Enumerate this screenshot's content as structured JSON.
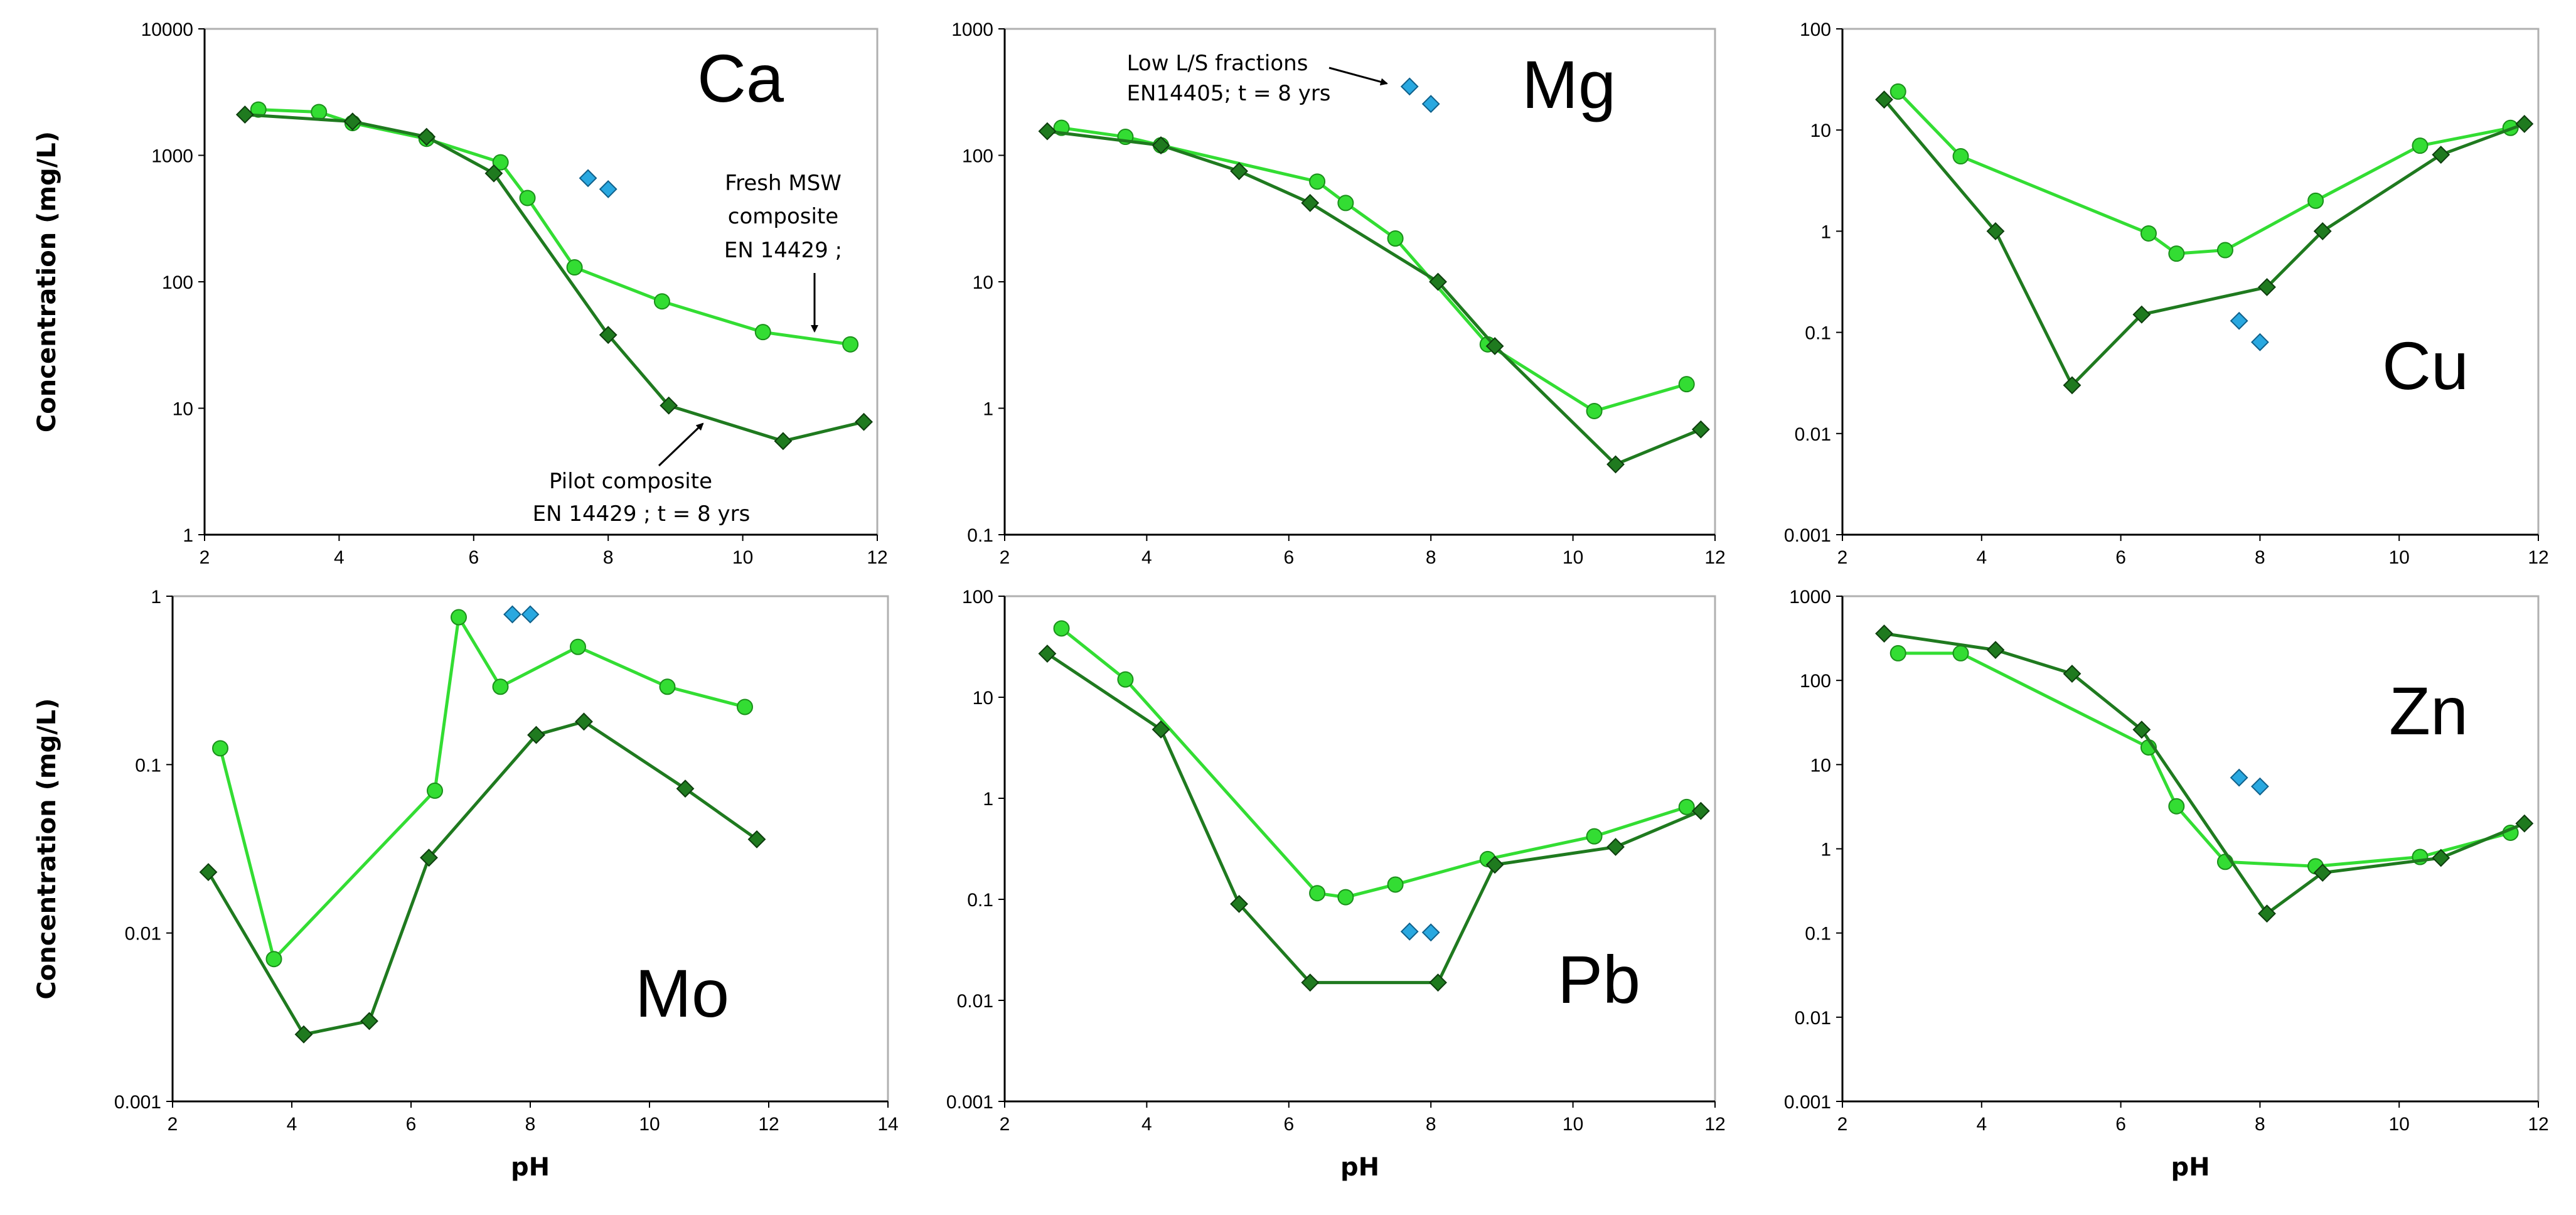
{
  "colors": {
    "fresh": "#33dd33",
    "fresh_edge": "#1a8f1a",
    "pilot": "#1f7a1f",
    "pilot_edge": "#0d3d0d",
    "lowls": "#29a8e0",
    "lowls_edge": "#10608a",
    "frame": "#b0b0b0"
  },
  "annotations": {
    "fresh_lines": [
      "Fresh MSW",
      "composite",
      "EN 14429 ;"
    ],
    "pilot_lines": [
      "Pilot composite",
      "EN 14429 ; t = 8 yrs"
    ],
    "lowls_lines": [
      "Low L/S fractions",
      "EN14405; t = 8 yrs"
    ]
  },
  "chart_data": [
    {
      "type": "scatter",
      "title": "Ca",
      "xlabel": "",
      "ylabel": "Concentration (mg/L)",
      "xlim": [
        2,
        12
      ],
      "xticks": [
        2,
        4,
        6,
        8,
        10,
        12
      ],
      "yscale": "log",
      "ylim": [
        1,
        10000
      ],
      "yticks": [
        "1",
        "10",
        "100",
        "1000",
        "10000"
      ],
      "series": [
        {
          "name": "Fresh MSW composite EN 14429",
          "marker": "circle",
          "line": true,
          "x": [
            2.8,
            3.7,
            4.2,
            5.3,
            6.4,
            6.8,
            7.5,
            8.8,
            10.3,
            11.6
          ],
          "y": [
            2300,
            2200,
            1800,
            1350,
            880,
            460,
            130,
            70,
            40,
            32
          ]
        },
        {
          "name": "Pilot composite EN 14429 ; t = 8 yrs",
          "marker": "diamond",
          "line": true,
          "x": [
            2.6,
            4.2,
            5.3,
            6.3,
            8.0,
            8.9,
            10.6,
            11.8
          ],
          "y": [
            2100,
            1850,
            1400,
            720,
            38,
            10.5,
            5.5,
            7.8
          ]
        },
        {
          "name": "Low L/S fractions EN14405; t = 8 yrs",
          "marker": "diamond",
          "line": false,
          "x": [
            7.7,
            8.0
          ],
          "y": [
            660,
            540
          ]
        }
      ]
    },
    {
      "type": "scatter",
      "title": "Mg",
      "xlabel": "",
      "ylabel": "",
      "xlim": [
        2,
        12
      ],
      "xticks": [
        2,
        4,
        6,
        8,
        10,
        12
      ],
      "yscale": "log",
      "ylim": [
        0.1,
        1000
      ],
      "yticks": [
        "0.1",
        "1",
        "10",
        "100",
        "1000"
      ],
      "series": [
        {
          "name": "Fresh MSW composite EN 14429",
          "marker": "circle",
          "line": true,
          "x": [
            2.8,
            3.7,
            4.2,
            6.4,
            6.8,
            7.5,
            8.8,
            10.3,
            11.6
          ],
          "y": [
            165,
            140,
            120,
            62,
            42,
            22,
            3.2,
            0.95,
            1.55
          ]
        },
        {
          "name": "Pilot composite EN 14429 ; t = 8 yrs",
          "marker": "diamond",
          "line": true,
          "x": [
            2.6,
            4.2,
            5.3,
            6.3,
            8.1,
            8.9,
            10.6,
            11.8
          ],
          "y": [
            155,
            120,
            75,
            42,
            10,
            3.1,
            0.36,
            0.68
          ]
        },
        {
          "name": "Low L/S fractions EN14405; t = 8 yrs",
          "marker": "diamond",
          "line": false,
          "x": [
            7.7,
            8.0
          ],
          "y": [
            350,
            255
          ]
        }
      ]
    },
    {
      "type": "scatter",
      "title": "Cu",
      "xlabel": "",
      "ylabel": "",
      "xlim": [
        2,
        12
      ],
      "xticks": [
        2,
        4,
        6,
        8,
        10,
        12
      ],
      "yscale": "log",
      "ylim": [
        0.001,
        100
      ],
      "yticks": [
        "0.001",
        "0.01",
        "0.1",
        "1",
        "10",
        "100"
      ],
      "series": [
        {
          "name": "Fresh MSW composite EN 14429",
          "marker": "circle",
          "line": true,
          "x": [
            2.8,
            3.7,
            6.4,
            6.8,
            7.5,
            8.8,
            10.3,
            11.6
          ],
          "y": [
            24,
            5.5,
            0.95,
            0.6,
            0.65,
            2.0,
            7.0,
            10.5
          ]
        },
        {
          "name": "Pilot composite EN 14429 ; t = 8 yrs",
          "marker": "diamond",
          "line": true,
          "x": [
            2.6,
            4.2,
            5.3,
            6.3,
            8.1,
            8.9,
            10.6,
            11.8
          ],
          "y": [
            20,
            1.0,
            0.03,
            0.15,
            0.28,
            1.0,
            5.7,
            11.5
          ]
        },
        {
          "name": "Low L/S fractions EN14405; t = 8 yrs",
          "marker": "diamond",
          "line": false,
          "x": [
            7.7,
            8.0
          ],
          "y": [
            0.13,
            0.08
          ]
        }
      ]
    },
    {
      "type": "scatter",
      "title": "Mo",
      "xlabel": "pH",
      "ylabel": "Concentration (mg/L)",
      "xlim": [
        2,
        14
      ],
      "xticks": [
        2,
        4,
        6,
        8,
        10,
        12,
        14
      ],
      "yscale": "log",
      "ylim": [
        0.001,
        1
      ],
      "yticks": [
        "0.001",
        "0.01",
        "0.1",
        "1"
      ],
      "series": [
        {
          "name": "Fresh MSW composite EN 14429",
          "marker": "circle",
          "line": true,
          "x": [
            2.8,
            3.7,
            6.4,
            6.8,
            7.5,
            8.8,
            10.3,
            11.6
          ],
          "y": [
            0.125,
            0.007,
            0.07,
            0.75,
            0.29,
            0.5,
            0.29,
            0.22
          ]
        },
        {
          "name": "Pilot composite EN 14429 ; t = 8 yrs",
          "marker": "diamond",
          "line": true,
          "x": [
            2.6,
            4.2,
            5.3,
            6.3,
            8.1,
            8.9,
            10.6,
            11.8
          ],
          "y": [
            0.023,
            0.0025,
            0.003,
            0.028,
            0.15,
            0.18,
            0.072,
            0.036
          ]
        },
        {
          "name": "Low L/S fractions EN14405; t = 8 yrs",
          "marker": "diamond",
          "line": false,
          "x": [
            7.7,
            8.0
          ],
          "y": [
            0.78,
            0.78
          ]
        }
      ]
    },
    {
      "type": "scatter",
      "title": "Pb",
      "xlabel": "pH",
      "ylabel": "",
      "xlim": [
        2,
        12
      ],
      "xticks": [
        2,
        4,
        6,
        8,
        10,
        12
      ],
      "yscale": "log",
      "ylim": [
        0.001,
        100
      ],
      "yticks": [
        "0.001",
        "0.01",
        "0.1",
        "1",
        "10",
        "100"
      ],
      "series": [
        {
          "name": "Fresh MSW composite EN 14429",
          "marker": "circle",
          "line": true,
          "x": [
            2.8,
            3.7,
            6.4,
            6.8,
            7.5,
            8.8,
            10.3,
            11.6
          ],
          "y": [
            48,
            15,
            0.115,
            0.105,
            0.14,
            0.25,
            0.42,
            0.82
          ]
        },
        {
          "name": "Pilot composite EN 14429 ; t = 8 yrs",
          "marker": "diamond",
          "line": true,
          "x": [
            2.6,
            4.2,
            5.3,
            6.3,
            8.1,
            8.9,
            10.6,
            11.8
          ],
          "y": [
            27,
            4.8,
            0.09,
            0.015,
            0.015,
            0.22,
            0.33,
            0.75
          ]
        },
        {
          "name": "Low L/S fractions EN14405; t = 8 yrs",
          "marker": "diamond",
          "line": false,
          "x": [
            7.7,
            8.0
          ],
          "y": [
            0.048,
            0.047
          ]
        }
      ]
    },
    {
      "type": "scatter",
      "title": "Zn",
      "xlabel": "pH",
      "ylabel": "",
      "xlim": [
        2,
        12
      ],
      "xticks": [
        2,
        4,
        6,
        8,
        10,
        12
      ],
      "yscale": "log",
      "ylim": [
        0.001,
        1000
      ],
      "yticks": [
        "0.001",
        "0.01",
        "0.1",
        "1",
        "10",
        "100",
        "1000"
      ],
      "series": [
        {
          "name": "Fresh MSW composite EN 14429",
          "marker": "circle",
          "line": true,
          "x": [
            2.8,
            3.7,
            6.4,
            6.8,
            7.5,
            8.8,
            10.3,
            11.6
          ],
          "y": [
            210,
            210,
            16,
            3.2,
            0.7,
            0.62,
            0.8,
            1.55
          ]
        },
        {
          "name": "Pilot composite EN 14429 ; t = 8 yrs",
          "marker": "diamond",
          "line": true,
          "x": [
            2.6,
            4.2,
            5.3,
            6.3,
            8.1,
            8.9,
            10.6,
            11.8
          ],
          "y": [
            360,
            230,
            120,
            26,
            0.17,
            0.52,
            0.78,
            2.0
          ]
        },
        {
          "name": "Low L/S fractions EN14405; t = 8 yrs",
          "marker": "diamond",
          "line": false,
          "x": [
            7.7,
            8.0
          ],
          "y": [
            7.0,
            5.5
          ]
        }
      ]
    }
  ]
}
